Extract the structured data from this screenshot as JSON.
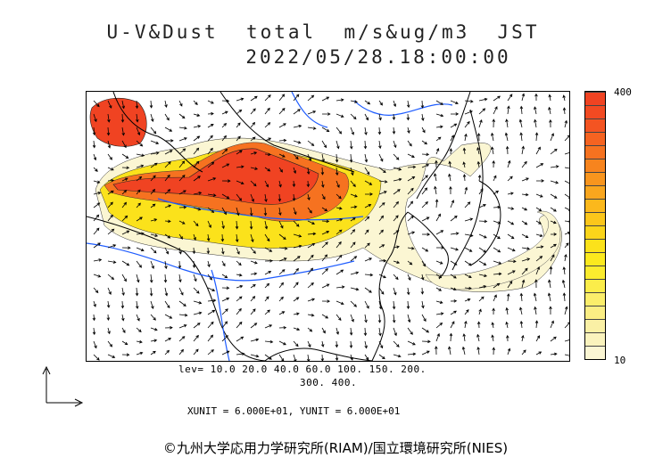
{
  "header": {
    "title_line1": "U-V&Dust  total  m/s&ug/m3  JST",
    "title_line2": "2022/05/28.18:00:00"
  },
  "colorbar": {
    "max_label": "400",
    "min_label": "10",
    "colors": [
      "#fbf6d3",
      "#faf3bd",
      "#faf0a5",
      "#fbee84",
      "#fbee6b",
      "#fbed4a",
      "#fbec2e",
      "#fbe91e",
      "#fbe21b",
      "#fbd51a",
      "#fbc61b",
      "#fbb81c",
      "#f9a61e",
      "#f8951e",
      "#f7841e",
      "#f67220",
      "#f56321",
      "#f45422",
      "#f24a22",
      "#f04322"
    ]
  },
  "legend": {
    "levels_line1": "lev= 10.0 20.0 40.0 60.0 100. 150. 200.",
    "levels_line2": "300. 400."
  },
  "units_text": "XUNIT = 6.000E+01, YUNIT = 6.000E+01",
  "credit": "©九州大学応用力学研究所(RIAM)/国立環境研究所(NIES)",
  "map_colors": {
    "land_outline": "#000000",
    "rivers": "#1e5cff",
    "dust_light": "#fbf6d3",
    "dust_mid": "#fbe21b",
    "dust_high": "#f67220",
    "dust_max": "#f04322"
  }
}
